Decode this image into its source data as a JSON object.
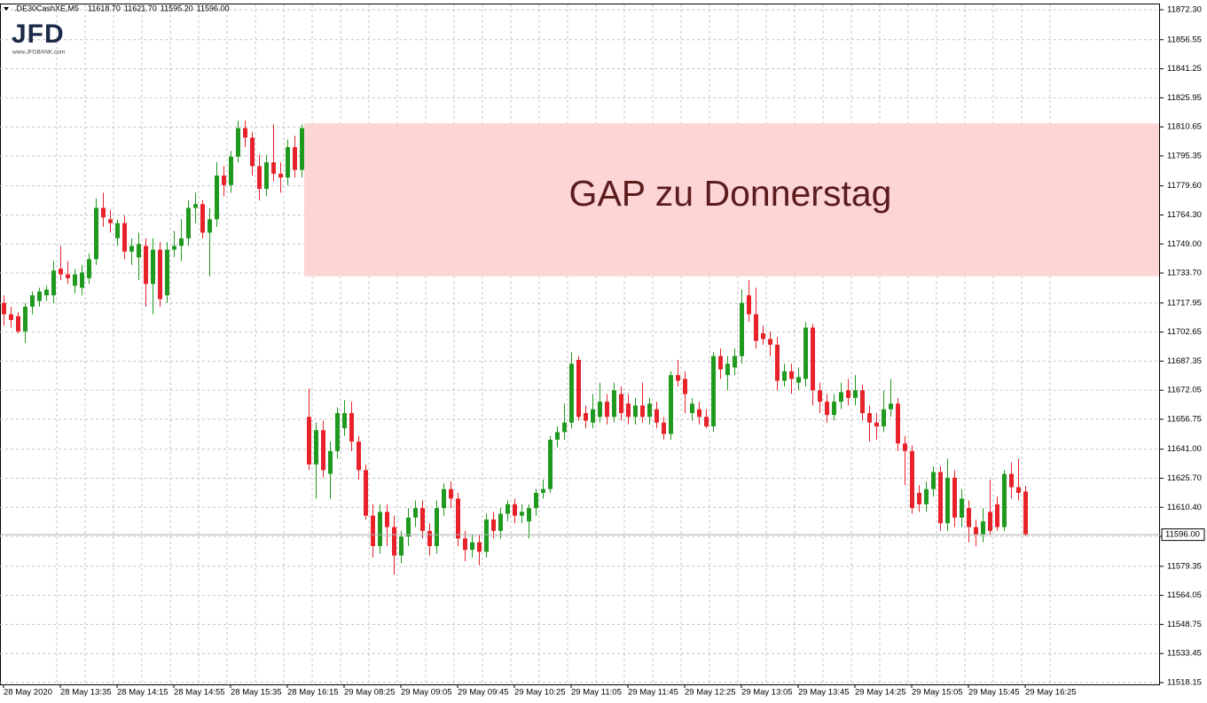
{
  "chart_data": {
    "type": "candlestick",
    "header": {
      "symbol": ".DE30CashXE,M5",
      "ohlc_text": [
        "11618.70",
        "11621.70",
        "11595.20",
        "11596.00"
      ]
    },
    "logo": {
      "text": "JFD",
      "url": "www.JFDBANK.com"
    },
    "annotation": {
      "text": "GAP zu Donnerstag",
      "ylim": [
        11732,
        11812.5
      ],
      "color": "#fdd5d5"
    },
    "up_color": "#1f9a1f",
    "down_color": "#e8222a",
    "grid": true,
    "last_price": {
      "value": 11596,
      "label": "11596.00"
    },
    "ylim": [
      11517.2,
      11875.1
    ],
    "yticks": [
      {
        "value": 11872.3,
        "label": "11872.30"
      },
      {
        "value": 11856.55,
        "label": "11856.55"
      },
      {
        "value": 11841.25,
        "label": "11841.25"
      },
      {
        "value": 11825.95,
        "label": "11825.95"
      },
      {
        "value": 11810.65,
        "label": "11810.65"
      },
      {
        "value": 11795.35,
        "label": "11795.35"
      },
      {
        "value": 11779.6,
        "label": "11779.60"
      },
      {
        "value": 11764.3,
        "label": "11764.30"
      },
      {
        "value": 11749,
        "label": "11749.00"
      },
      {
        "value": 11733.7,
        "label": "11733.70"
      },
      {
        "value": 11717.95,
        "label": "11717.95"
      },
      {
        "value": 11702.65,
        "label": "11702.65"
      },
      {
        "value": 11687.35,
        "label": "11687.35"
      },
      {
        "value": 11672.05,
        "label": "11672.05"
      },
      {
        "value": 11656.75,
        "label": "11656.75"
      },
      {
        "value": 11641,
        "label": "11641.00"
      },
      {
        "value": 11625.7,
        "label": "11625.70"
      },
      {
        "value": 11610.4,
        "label": "11610.40"
      },
      {
        "value": 11595.1,
        "label": "11595.10"
      },
      {
        "value": 11579.35,
        "label": "11579.35"
      },
      {
        "value": 11564.05,
        "label": "11564.05"
      },
      {
        "value": 11548.75,
        "label": "11548.75"
      },
      {
        "value": 11533.45,
        "label": "11533.45"
      },
      {
        "value": 11518.15,
        "label": "11518.15"
      }
    ],
    "categories": [
      "28 May 2020",
      null,
      null,
      null,
      null,
      null,
      null,
      null,
      "28 May 13:35",
      null,
      null,
      null,
      null,
      null,
      null,
      null,
      "28 May 14:15",
      null,
      null,
      null,
      null,
      null,
      null,
      null,
      "28 May 14:55",
      null,
      null,
      null,
      null,
      null,
      null,
      null,
      "28 May 15:35",
      null,
      null,
      null,
      null,
      null,
      null,
      null,
      "28 May 16:15",
      null,
      null,
      null,
      null,
      null,
      null,
      null,
      "29 May 08:25",
      null,
      null,
      null,
      null,
      null,
      null,
      null,
      "29 May 09:05",
      null,
      null,
      null,
      null,
      null,
      null,
      null,
      "29 May 09:45",
      null,
      null,
      null,
      null,
      null,
      null,
      null,
      "29 May 10:25",
      null,
      null,
      null,
      null,
      null,
      null,
      null,
      "29 May 11:05",
      null,
      null,
      null,
      null,
      null,
      null,
      null,
      "29 May 11:45",
      null,
      null,
      null,
      null,
      null,
      null,
      null,
      "29 May 12:25",
      null,
      null,
      null,
      null,
      null,
      null,
      null,
      "29 May 13:05",
      null,
      null,
      null,
      null,
      null,
      null,
      null,
      "29 May 13:45",
      null,
      null,
      null,
      null,
      null,
      null,
      null,
      "29 May 14:25",
      null,
      null,
      null,
      null,
      null,
      null,
      null,
      "29 May 15:05",
      null,
      null,
      null,
      null,
      null,
      null,
      null,
      "29 May 15:45",
      null,
      null,
      null,
      null,
      null,
      null,
      null,
      "29 May 16:25"
    ],
    "ohlc": [
      [
        11718,
        11722,
        11706,
        11712
      ],
      [
        11712,
        11716,
        11705,
        11709
      ],
      [
        11711,
        11713,
        11702,
        11703
      ],
      [
        11703,
        11718,
        11697,
        11716
      ],
      [
        11716,
        11724,
        11712,
        11722
      ],
      [
        11719,
        11726,
        11716,
        11724
      ],
      [
        11722,
        11727,
        11719,
        11725
      ],
      [
        11722,
        11740,
        11718,
        11735
      ],
      [
        11736,
        11748,
        11730,
        11733
      ],
      [
        11733,
        11740,
        11728,
        11731
      ],
      [
        11727,
        11736,
        11723,
        11733
      ],
      [
        11726,
        11738,
        11722,
        11734
      ],
      [
        11731,
        11744,
        11728,
        11741
      ],
      [
        11741,
        11773,
        11738,
        11768
      ],
      [
        11768,
        11776,
        11758,
        11763
      ],
      [
        11762,
        11767,
        11755,
        11760
      ],
      [
        11752,
        11762,
        11748,
        11760
      ],
      [
        11760,
        11764,
        11741,
        11745
      ],
      [
        11745,
        11752,
        11738,
        11748
      ],
      [
        11742,
        11755,
        11730,
        11749
      ],
      [
        11748,
        11752,
        11716,
        11728
      ],
      [
        11728,
        11752,
        11712,
        11746
      ],
      [
        11746,
        11750,
        11716,
        11720
      ],
      [
        11722,
        11750,
        11718,
        11746
      ],
      [
        11746,
        11756,
        11742,
        11748
      ],
      [
        11748,
        11762,
        11740,
        11752
      ],
      [
        11752,
        11772,
        11748,
        11768
      ],
      [
        11768,
        11776,
        11760,
        11770
      ],
      [
        11770,
        11772,
        11752,
        11755
      ],
      [
        11755,
        11768,
        11732,
        11762
      ],
      [
        11762,
        11792,
        11758,
        11785
      ],
      [
        11785,
        11790,
        11774,
        11780
      ],
      [
        11780,
        11798,
        11776,
        11795
      ],
      [
        11795,
        11814,
        11792,
        11810
      ],
      [
        11810,
        11814,
        11800,
        11805
      ],
      [
        11805,
        11808,
        11785,
        11790
      ],
      [
        11790,
        11796,
        11772,
        11778
      ],
      [
        11778,
        11796,
        11774,
        11792
      ],
      [
        11792,
        11812,
        11782,
        11786
      ],
      [
        11786,
        11792,
        11776,
        11784
      ],
      [
        11784,
        11804,
        11780,
        11800
      ],
      [
        11800,
        11806,
        11784,
        11788
      ],
      [
        11788,
        11812,
        11784,
        11810
      ],
      [
        11658,
        11673,
        11630,
        11633
      ],
      [
        11633,
        11655,
        11615,
        11651
      ],
      [
        11651,
        11656,
        11626,
        11630
      ],
      [
        11628,
        11645,
        11615,
        11640
      ],
      [
        11640,
        11663,
        11636,
        11660
      ],
      [
        11652,
        11667,
        11648,
        11660
      ],
      [
        11660,
        11666,
        11640,
        11645
      ],
      [
        11645,
        11648,
        11625,
        11630
      ],
      [
        11630,
        11633,
        11604,
        11606
      ],
      [
        11606,
        11612,
        11584,
        11590
      ],
      [
        11590,
        11612,
        11586,
        11608
      ],
      [
        11608,
        11612,
        11590,
        11600
      ],
      [
        11600,
        11606,
        11575,
        11585
      ],
      [
        11585,
        11598,
        11581,
        11595
      ],
      [
        11595,
        11610,
        11590,
        11605
      ],
      [
        11605,
        11614,
        11600,
        11610
      ],
      [
        11610,
        11614,
        11594,
        11598
      ],
      [
        11598,
        11602,
        11585,
        11590
      ],
      [
        11590,
        11614,
        11586,
        11610
      ],
      [
        11610,
        11623,
        11606,
        11620
      ],
      [
        11620,
        11624,
        11610,
        11615
      ],
      [
        11615,
        11618,
        11590,
        11594
      ],
      [
        11594,
        11598,
        11582,
        11588
      ],
      [
        11588,
        11596,
        11584,
        11592
      ],
      [
        11592,
        11596,
        11580,
        11587
      ],
      [
        11587,
        11607,
        11584,
        11604
      ],
      [
        11604,
        11608,
        11594,
        11598
      ],
      [
        11598,
        11610,
        11594,
        11607
      ],
      [
        11607,
        11614,
        11603,
        11612
      ],
      [
        11612,
        11615,
        11602,
        11606
      ],
      [
        11606,
        11612,
        11602,
        11608
      ],
      [
        11603,
        11612,
        11594,
        11610
      ],
      [
        11610,
        11620,
        11606,
        11618
      ],
      [
        11618,
        11625,
        11615,
        11620
      ],
      [
        11620,
        11648,
        11618,
        11646
      ],
      [
        11646,
        11653,
        11642,
        11650
      ],
      [
        11650,
        11665,
        11646,
        11655
      ],
      [
        11655,
        11692,
        11652,
        11686
      ],
      [
        11688,
        11690,
        11656,
        11658
      ],
      [
        11660,
        11664,
        11652,
        11656
      ],
      [
        11655,
        11670,
        11652,
        11662
      ],
      [
        11658,
        11676,
        11655,
        11666
      ],
      [
        11666,
        11670,
        11654,
        11658
      ],
      [
        11658,
        11676,
        11655,
        11672
      ],
      [
        11670,
        11674,
        11656,
        11660
      ],
      [
        11665,
        11670,
        11654,
        11658
      ],
      [
        11658,
        11668,
        11654,
        11664
      ],
      [
        11664,
        11676,
        11655,
        11658
      ],
      [
        11658,
        11668,
        11654,
        11665
      ],
      [
        11662,
        11666,
        11652,
        11655
      ],
      [
        11655,
        11658,
        11646,
        11649
      ],
      [
        11649,
        11682,
        11646,
        11680
      ],
      [
        11680,
        11688,
        11674,
        11677
      ],
      [
        11678,
        11682,
        11660,
        11670
      ],
      [
        11660,
        11668,
        11656,
        11665
      ],
      [
        11662,
        11666,
        11654,
        11658
      ],
      [
        11658,
        11662,
        11652,
        11653
      ],
      [
        11653,
        11692,
        11650,
        11690
      ],
      [
        11690,
        11694,
        11678,
        11683
      ],
      [
        11680,
        11690,
        11672,
        11686
      ],
      [
        11684,
        11694,
        11680,
        11690
      ],
      [
        11690,
        11725,
        11686,
        11718
      ],
      [
        11722,
        11730,
        11708,
        11712
      ],
      [
        11712,
        11726,
        11694,
        11698
      ],
      [
        11702,
        11706,
        11696,
        11699
      ],
      [
        11699,
        11703,
        11690,
        11696
      ],
      [
        11696,
        11700,
        11672,
        11677
      ],
      [
        11677,
        11686,
        11674,
        11682
      ],
      [
        11682,
        11686,
        11670,
        11678
      ],
      [
        11676,
        11684,
        11672,
        11679
      ],
      [
        11678,
        11708,
        11674,
        11705
      ],
      [
        11705,
        11707,
        11664,
        11672
      ],
      [
        11672,
        11676,
        11660,
        11666
      ],
      [
        11666,
        11670,
        11655,
        11659
      ],
      [
        11659,
        11670,
        11656,
        11666
      ],
      [
        11666,
        11676,
        11662,
        11671
      ],
      [
        11672,
        11678,
        11664,
        11668
      ],
      [
        11668,
        11680,
        11664,
        11672
      ],
      [
        11672,
        11675,
        11656,
        11660
      ],
      [
        11660,
        11664,
        11645,
        11655
      ],
      [
        11655,
        11660,
        11646,
        11653
      ],
      [
        11653,
        11672,
        11650,
        11662
      ],
      [
        11662,
        11678,
        11658,
        11665
      ],
      [
        11665,
        11668,
        11640,
        11644
      ],
      [
        11644,
        11648,
        11622,
        11640
      ],
      [
        11640,
        11643,
        11607,
        11610
      ],
      [
        11618,
        11622,
        11608,
        11612
      ],
      [
        11612,
        11624,
        11608,
        11620
      ],
      [
        11620,
        11632,
        11616,
        11629
      ],
      [
        11629,
        11632,
        11598,
        11602
      ],
      [
        11602,
        11636,
        11598,
        11626
      ],
      [
        11626,
        11630,
        11600,
        11605
      ],
      [
        11605,
        11620,
        11600,
        11615
      ],
      [
        11610,
        11614,
        11592,
        11600
      ],
      [
        11600,
        11604,
        11590,
        11596
      ],
      [
        11596,
        11610,
        11592,
        11603
      ],
      [
        11608,
        11625,
        11596,
        11598
      ],
      [
        11612,
        11616,
        11598,
        11600
      ],
      [
        11600,
        11630,
        11598,
        11628
      ],
      [
        11628,
        11634,
        11615,
        11621
      ],
      [
        11621,
        11636,
        11614,
        11618
      ],
      [
        11618.7,
        11621.7,
        11595.2,
        11596
      ]
    ]
  }
}
